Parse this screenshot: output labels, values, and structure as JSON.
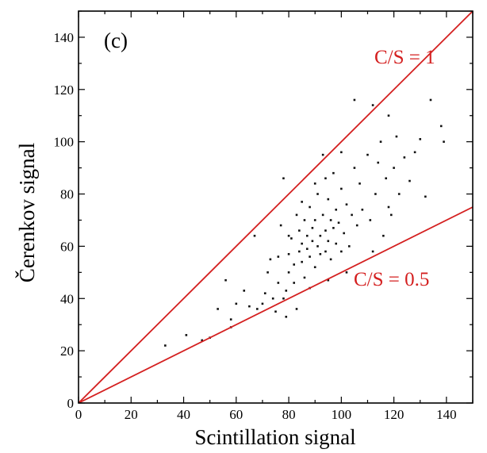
{
  "chart_data": {
    "type": "scatter",
    "title": "",
    "panel_label": "(c)",
    "xlabel": "Scintillation signal",
    "ylabel": "Čerenkov signal",
    "xlim": [
      0,
      150
    ],
    "ylim": [
      0,
      150
    ],
    "x_ticks": [
      "0",
      "20",
      "40",
      "60",
      "80",
      "100",
      "120",
      "140"
    ],
    "y_ticks": [
      "0",
      "20",
      "40",
      "60",
      "80",
      "100",
      "120",
      "140"
    ],
    "grid": false,
    "accent_color": "#d42020",
    "reference_lines": [
      {
        "label": "C/S = 1",
        "slope": 1.0,
        "color": "#d42020"
      },
      {
        "label": "C/S = 0.5",
        "slope": 0.5,
        "color": "#d42020"
      }
    ],
    "points": [
      [
        33,
        22
      ],
      [
        41,
        26
      ],
      [
        47,
        24
      ],
      [
        50,
        25
      ],
      [
        53,
        36
      ],
      [
        56,
        47
      ],
      [
        58,
        29
      ],
      [
        58,
        32
      ],
      [
        60,
        38
      ],
      [
        63,
        43
      ],
      [
        65,
        37
      ],
      [
        67,
        64
      ],
      [
        68,
        36
      ],
      [
        70,
        38
      ],
      [
        71,
        42
      ],
      [
        72,
        50
      ],
      [
        73,
        55
      ],
      [
        74,
        40
      ],
      [
        75,
        35
      ],
      [
        76,
        46
      ],
      [
        77,
        68
      ],
      [
        78,
        40
      ],
      [
        78,
        86
      ],
      [
        79,
        43
      ],
      [
        80,
        50
      ],
      [
        80,
        57
      ],
      [
        81,
        63
      ],
      [
        82,
        53
      ],
      [
        82,
        46
      ],
      [
        83,
        72
      ],
      [
        84,
        58
      ],
      [
        84,
        66
      ],
      [
        85,
        54
      ],
      [
        85,
        61
      ],
      [
        86,
        48
      ],
      [
        86,
        70
      ],
      [
        87,
        59
      ],
      [
        87,
        64
      ],
      [
        88,
        56
      ],
      [
        88,
        75
      ],
      [
        89,
        62
      ],
      [
        89,
        67
      ],
      [
        90,
        52
      ],
      [
        90,
        70
      ],
      [
        91,
        60
      ],
      [
        91,
        80
      ],
      [
        92,
        64
      ],
      [
        92,
        57
      ],
      [
        93,
        72
      ],
      [
        93,
        95
      ],
      [
        94,
        66
      ],
      [
        94,
        58
      ],
      [
        95,
        62
      ],
      [
        95,
        78
      ],
      [
        96,
        70
      ],
      [
        96,
        55
      ],
      [
        97,
        67
      ],
      [
        97,
        88
      ],
      [
        98,
        61
      ],
      [
        98,
        74
      ],
      [
        99,
        69
      ],
      [
        100,
        58
      ],
      [
        100,
        82
      ],
      [
        101,
        65
      ],
      [
        102,
        76
      ],
      [
        103,
        60
      ],
      [
        104,
        72
      ],
      [
        105,
        90
      ],
      [
        105,
        116
      ],
      [
        106,
        68
      ],
      [
        107,
        84
      ],
      [
        108,
        74
      ],
      [
        110,
        95
      ],
      [
        111,
        70
      ],
      [
        112,
        114
      ],
      [
        113,
        80
      ],
      [
        114,
        92
      ],
      [
        115,
        100
      ],
      [
        116,
        64
      ],
      [
        117,
        86
      ],
      [
        118,
        110
      ],
      [
        119,
        72
      ],
      [
        120,
        90
      ],
      [
        121,
        102
      ],
      [
        122,
        80
      ],
      [
        124,
        94
      ],
      [
        126,
        85
      ],
      [
        128,
        96
      ],
      [
        130,
        101
      ],
      [
        132,
        79
      ],
      [
        134,
        116
      ],
      [
        138,
        106
      ],
      [
        139,
        100
      ],
      [
        79,
        33
      ],
      [
        83,
        36
      ],
      [
        88,
        44
      ],
      [
        95,
        47
      ],
      [
        102,
        50
      ],
      [
        112,
        58
      ],
      [
        118,
        75
      ],
      [
        76,
        56
      ],
      [
        80,
        64
      ],
      [
        85,
        77
      ],
      [
        90,
        84
      ],
      [
        94,
        86
      ],
      [
        100,
        96
      ]
    ]
  }
}
